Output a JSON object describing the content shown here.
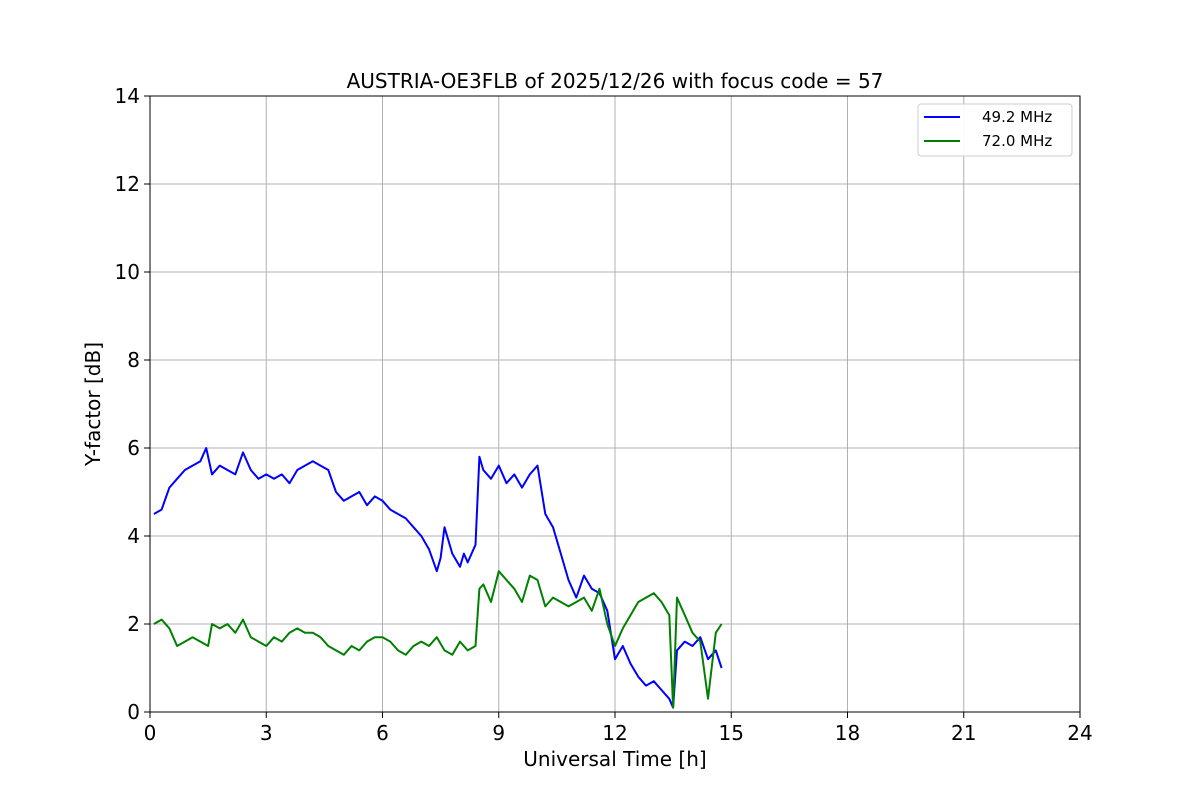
{
  "chart_data": {
    "type": "line",
    "title": "AUSTRIA-OE3FLB of 2025/12/26 with focus code = 57",
    "xlabel": "Universal Time [h]",
    "ylabel": "Y-factor [dB]",
    "xlim": [
      0,
      24
    ],
    "ylim": [
      0,
      14
    ],
    "xticks": [
      0,
      3,
      6,
      9,
      12,
      15,
      18,
      21,
      24
    ],
    "yticks": [
      0,
      2,
      4,
      6,
      8,
      10,
      12,
      14
    ],
    "grid": true,
    "legend_position": "top-right",
    "series": [
      {
        "name": "49.2 MHz",
        "color": "#0000ff",
        "x": [
          0.1,
          0.3,
          0.5,
          0.7,
          0.9,
          1.1,
          1.3,
          1.45,
          1.6,
          1.8,
          2.0,
          2.2,
          2.4,
          2.6,
          2.8,
          3.0,
          3.2,
          3.4,
          3.6,
          3.8,
          4.0,
          4.2,
          4.4,
          4.6,
          4.8,
          5.0,
          5.2,
          5.4,
          5.6,
          5.8,
          6.0,
          6.2,
          6.4,
          6.6,
          6.8,
          7.0,
          7.2,
          7.4,
          7.5,
          7.6,
          7.8,
          8.0,
          8.1,
          8.2,
          8.4,
          8.5,
          8.6,
          8.8,
          9.0,
          9.2,
          9.4,
          9.6,
          9.8,
          10.0,
          10.2,
          10.4,
          10.6,
          10.8,
          11.0,
          11.2,
          11.4,
          11.6,
          11.8,
          12.0,
          12.2,
          12.4,
          12.6,
          12.8,
          13.0,
          13.2,
          13.4,
          13.5,
          13.6,
          13.8,
          14.0,
          14.2,
          14.4,
          14.6,
          14.75
        ],
        "values": [
          4.5,
          4.6,
          5.1,
          5.3,
          5.5,
          5.6,
          5.7,
          6.0,
          5.4,
          5.6,
          5.5,
          5.4,
          5.9,
          5.5,
          5.3,
          5.4,
          5.3,
          5.4,
          5.2,
          5.5,
          5.6,
          5.7,
          5.6,
          5.5,
          5.0,
          4.8,
          4.9,
          5.0,
          4.7,
          4.9,
          4.8,
          4.6,
          4.5,
          4.4,
          4.2,
          4.0,
          3.7,
          3.2,
          3.5,
          4.2,
          3.6,
          3.3,
          3.6,
          3.4,
          3.8,
          5.8,
          5.5,
          5.3,
          5.6,
          5.2,
          5.4,
          5.1,
          5.4,
          5.6,
          4.5,
          4.2,
          3.6,
          3.0,
          2.6,
          3.1,
          2.8,
          2.7,
          2.3,
          1.2,
          1.5,
          1.1,
          0.8,
          0.6,
          0.7,
          0.5,
          0.3,
          0.1,
          1.4,
          1.6,
          1.5,
          1.7,
          1.2,
          1.4,
          1.0
        ]
      },
      {
        "name": "72.0 MHz",
        "color": "#008000",
        "x": [
          0.1,
          0.3,
          0.5,
          0.7,
          0.9,
          1.1,
          1.3,
          1.5,
          1.6,
          1.8,
          2.0,
          2.2,
          2.4,
          2.6,
          2.8,
          3.0,
          3.2,
          3.4,
          3.6,
          3.8,
          4.0,
          4.2,
          4.4,
          4.6,
          4.8,
          5.0,
          5.2,
          5.4,
          5.6,
          5.8,
          6.0,
          6.2,
          6.4,
          6.6,
          6.8,
          7.0,
          7.2,
          7.4,
          7.6,
          7.8,
          8.0,
          8.2,
          8.4,
          8.5,
          8.6,
          8.8,
          9.0,
          9.2,
          9.4,
          9.6,
          9.8,
          10.0,
          10.2,
          10.4,
          10.6,
          10.8,
          11.0,
          11.2,
          11.4,
          11.6,
          11.8,
          12.0,
          12.2,
          12.4,
          12.6,
          12.8,
          13.0,
          13.2,
          13.4,
          13.5,
          13.6,
          13.8,
          14.0,
          14.2,
          14.4,
          14.6,
          14.75
        ],
        "values": [
          2.0,
          2.1,
          1.9,
          1.5,
          1.6,
          1.7,
          1.6,
          1.5,
          2.0,
          1.9,
          2.0,
          1.8,
          2.1,
          1.7,
          1.6,
          1.5,
          1.7,
          1.6,
          1.8,
          1.9,
          1.8,
          1.8,
          1.7,
          1.5,
          1.4,
          1.3,
          1.5,
          1.4,
          1.6,
          1.7,
          1.7,
          1.6,
          1.4,
          1.3,
          1.5,
          1.6,
          1.5,
          1.7,
          1.4,
          1.3,
          1.6,
          1.4,
          1.5,
          2.8,
          2.9,
          2.5,
          3.2,
          3.0,
          2.8,
          2.5,
          3.1,
          3.0,
          2.4,
          2.6,
          2.5,
          2.4,
          2.5,
          2.6,
          2.3,
          2.8,
          2.0,
          1.5,
          1.9,
          2.2,
          2.5,
          2.6,
          2.7,
          2.5,
          2.2,
          0.1,
          2.6,
          2.2,
          1.8,
          1.6,
          0.3,
          1.8,
          2.0
        ]
      }
    ]
  }
}
